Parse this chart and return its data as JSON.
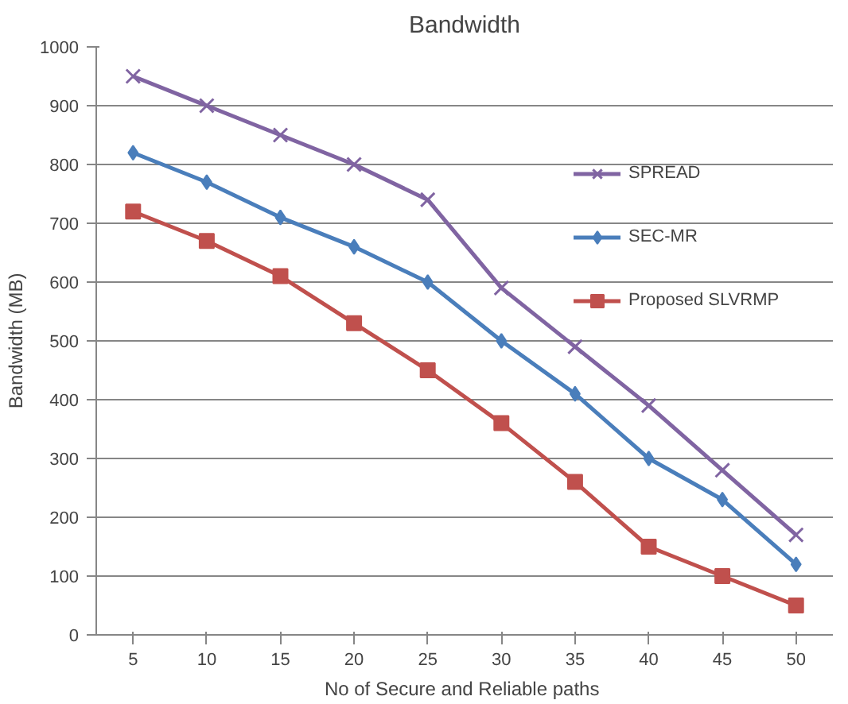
{
  "chart_data": {
    "type": "line",
    "title": "Bandwidth",
    "xlabel": "No of  Secure and Reliable paths",
    "ylabel": "Bandwidth (MB)",
    "categories": [
      "5",
      "10",
      "15",
      "20",
      "25",
      "30",
      "35",
      "40",
      "45",
      "50"
    ],
    "series": [
      {
        "name": "SPREAD",
        "color": "#8064a2",
        "marker": "cross",
        "values": [
          950,
          900,
          850,
          800,
          740,
          590,
          490,
          390,
          280,
          170
        ]
      },
      {
        "name": "SEC-MR",
        "color": "#4a7ebb",
        "marker": "diamond",
        "values": [
          820,
          770,
          710,
          660,
          600,
          500,
          410,
          300,
          230,
          120
        ]
      },
      {
        "name": "Proposed SLVRMP",
        "color": "#c0504d",
        "marker": "square",
        "values": [
          720,
          670,
          610,
          530,
          450,
          360,
          260,
          150,
          100,
          50
        ]
      }
    ],
    "ylim": [
      0,
      1000
    ],
    "yticks": [
      0,
      100,
      200,
      300,
      400,
      500,
      600,
      700,
      800,
      900,
      1000
    ],
    "grid": "y",
    "legend": "right"
  }
}
